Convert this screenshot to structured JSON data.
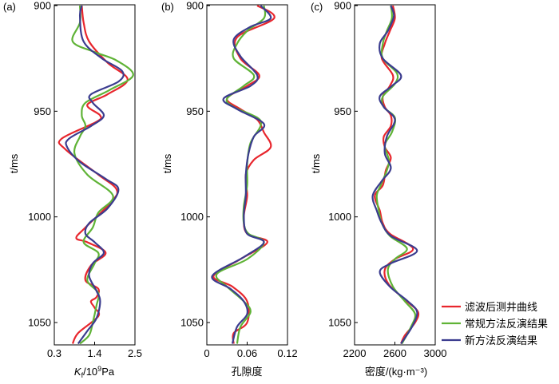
{
  "chart_data": [
    {
      "type": "line",
      "panel_label": "(a)",
      "ylabel": "t/ms",
      "xlabel_main": "K",
      "xlabel_sub": "f",
      "xlabel_rest": "/10",
      "xlabel_sup": "9",
      "xlabel_unit": "Pa",
      "xlim": [
        0.3,
        2.5
      ],
      "ylim": [
        900,
        1060
      ],
      "xticks": [
        "0.3",
        "1.4",
        "2.5"
      ],
      "xtick_values": [
        0.3,
        1.4,
        2.5
      ],
      "yticks": [
        "900",
        "950",
        "1000",
        "1050"
      ],
      "ytick_values": [
        900,
        950,
        1000,
        1050
      ],
      "series": [
        {
          "name": "滤波后测井曲线",
          "color": "#e8262d",
          "points": [
            [
              1.05,
              900
            ],
            [
              1.1,
              908
            ],
            [
              1.25,
              917
            ],
            [
              1.75,
              927
            ],
            [
              2.3,
              935
            ],
            [
              1.75,
              942
            ],
            [
              1.2,
              947
            ],
            [
              1.55,
              952
            ],
            [
              1.45,
              955
            ],
            [
              0.5,
              963
            ],
            [
              0.6,
              968
            ],
            [
              1.5,
              980
            ],
            [
              2.0,
              987
            ],
            [
              1.85,
              993
            ],
            [
              1.15,
              1005
            ],
            [
              0.9,
              1010
            ],
            [
              1.2,
              1012
            ],
            [
              1.7,
              1017
            ],
            [
              1.3,
              1023
            ],
            [
              1.15,
              1030
            ],
            [
              1.5,
              1034
            ],
            [
              1.45,
              1038
            ],
            [
              1.3,
              1040
            ],
            [
              1.4,
              1043
            ],
            [
              1.5,
              1047
            ],
            [
              0.95,
              1055
            ],
            [
              0.8,
              1060
            ]
          ]
        },
        {
          "name": "常规方法反演结果",
          "color": "#5fb336",
          "points": [
            [
              1.0,
              900
            ],
            [
              1.0,
              908
            ],
            [
              0.8,
              917
            ],
            [
              1.4,
              922
            ],
            [
              2.0,
              926
            ],
            [
              2.45,
              933
            ],
            [
              1.8,
              940
            ],
            [
              1.15,
              946
            ],
            [
              1.05,
              952
            ],
            [
              1.15,
              957
            ],
            [
              1.0,
              962
            ],
            [
              0.85,
              970
            ],
            [
              1.2,
              980
            ],
            [
              1.9,
              990
            ],
            [
              1.5,
              998
            ],
            [
              1.35,
              1005
            ],
            [
              1.1,
              1012
            ],
            [
              1.5,
              1017
            ],
            [
              1.4,
              1022
            ],
            [
              1.2,
              1030
            ],
            [
              1.5,
              1036
            ],
            [
              1.45,
              1042
            ],
            [
              1.35,
              1050
            ],
            [
              1.25,
              1056
            ],
            [
              1.0,
              1060
            ]
          ]
        },
        {
          "name": "新方法反演结果",
          "color": "#3b3c8f",
          "points": [
            [
              1.05,
              900
            ],
            [
              1.0,
              905
            ],
            [
              1.1,
              917
            ],
            [
              1.6,
              925
            ],
            [
              2.15,
              931
            ],
            [
              2.05,
              936
            ],
            [
              1.3,
              942
            ],
            [
              1.35,
              946
            ],
            [
              1.65,
              952
            ],
            [
              1.3,
              957
            ],
            [
              0.7,
              963
            ],
            [
              0.65,
              967
            ],
            [
              1.0,
              974
            ],
            [
              1.7,
              982
            ],
            [
              2.05,
              987
            ],
            [
              1.75,
              996
            ],
            [
              1.25,
              1003
            ],
            [
              1.15,
              1008
            ],
            [
              1.4,
              1012
            ],
            [
              1.65,
              1017
            ],
            [
              1.35,
              1022
            ],
            [
              1.25,
              1028
            ],
            [
              1.45,
              1035
            ],
            [
              1.55,
              1040
            ],
            [
              1.45,
              1048
            ],
            [
              1.2,
              1054
            ],
            [
              0.95,
              1060
            ]
          ]
        }
      ]
    },
    {
      "type": "line",
      "panel_label": "(b)",
      "ylabel": "t/ms",
      "xlabel_main": "孔隙度",
      "xlim": [
        0,
        0.12
      ],
      "ylim": [
        900,
        1060
      ],
      "xticks": [
        "0",
        "0.06",
        "0.12"
      ],
      "xtick_values": [
        0,
        0.06,
        0.12
      ],
      "yticks": [
        "900",
        "950",
        "1000",
        "1050"
      ],
      "ytick_values": [
        900,
        950,
        1000,
        1050
      ],
      "series": [
        {
          "name": "滤波后测井曲线",
          "color": "#e8262d",
          "points": [
            [
              0.075,
              900
            ],
            [
              0.1,
              906
            ],
            [
              0.045,
              915
            ],
            [
              0.05,
              925
            ],
            [
              0.078,
              933
            ],
            [
              0.06,
              938
            ],
            [
              0.03,
              944
            ],
            [
              0.05,
              949
            ],
            [
              0.075,
              954
            ],
            [
              0.085,
              960
            ],
            [
              0.095,
              967
            ],
            [
              0.07,
              973
            ],
            [
              0.058,
              980
            ],
            [
              0.06,
              990
            ],
            [
              0.055,
              1000
            ],
            [
              0.06,
              1008
            ],
            [
              0.09,
              1012
            ],
            [
              0.05,
              1020
            ],
            [
              0.01,
              1028
            ],
            [
              0.038,
              1033
            ],
            [
              0.06,
              1040
            ],
            [
              0.06,
              1050
            ],
            [
              0.04,
              1055
            ],
            [
              0.04,
              1060
            ]
          ]
        },
        {
          "name": "常规方法反演结果",
          "color": "#5fb336",
          "points": [
            [
              0.085,
              900
            ],
            [
              0.085,
              906
            ],
            [
              0.06,
              912
            ],
            [
              0.045,
              918
            ],
            [
              0.04,
              925
            ],
            [
              0.07,
              933
            ],
            [
              0.055,
              938
            ],
            [
              0.03,
              944
            ],
            [
              0.04,
              948
            ],
            [
              0.075,
              953
            ],
            [
              0.08,
              957
            ],
            [
              0.065,
              965
            ],
            [
              0.06,
              975
            ],
            [
              0.06,
              985
            ],
            [
              0.055,
              995
            ],
            [
              0.055,
              1003
            ],
            [
              0.062,
              1008
            ],
            [
              0.085,
              1012
            ],
            [
              0.06,
              1020
            ],
            [
              0.015,
              1027
            ],
            [
              0.03,
              1033
            ],
            [
              0.055,
              1040
            ],
            [
              0.065,
              1045
            ],
            [
              0.05,
              1052
            ],
            [
              0.045,
              1060
            ]
          ]
        },
        {
          "name": "新方法反演结果",
          "color": "#3b3c8f",
          "points": [
            [
              0.08,
              900
            ],
            [
              0.095,
              906
            ],
            [
              0.065,
              910
            ],
            [
              0.04,
              916
            ],
            [
              0.05,
              924
            ],
            [
              0.075,
              933
            ],
            [
              0.065,
              938
            ],
            [
              0.025,
              944
            ],
            [
              0.045,
              949
            ],
            [
              0.085,
              956
            ],
            [
              0.07,
              962
            ],
            [
              0.062,
              970
            ],
            [
              0.058,
              980
            ],
            [
              0.058,
              990
            ],
            [
              0.055,
              1000
            ],
            [
              0.06,
              1008
            ],
            [
              0.085,
              1012
            ],
            [
              0.055,
              1019
            ],
            [
              0.008,
              1028
            ],
            [
              0.035,
              1034
            ],
            [
              0.055,
              1040
            ],
            [
              0.06,
              1046
            ],
            [
              0.045,
              1052
            ],
            [
              0.038,
              1060
            ]
          ]
        }
      ]
    },
    {
      "type": "line",
      "panel_label": "(c)",
      "ylabel": "t/ms",
      "xlabel_main": "密度/(kg·m⁻³)",
      "xlim": [
        2200,
        3000
      ],
      "ylim": [
        900,
        1060
      ],
      "xticks": [
        "2200",
        "2600",
        "3000"
      ],
      "xtick_values": [
        2200,
        2600,
        3000
      ],
      "yticks": [
        "900",
        "950",
        "1000",
        "1050"
      ],
      "ytick_values": [
        900,
        950,
        1000,
        1050
      ],
      "series": [
        {
          "name": "滤波后测井曲线",
          "color": "#e8262d",
          "points": [
            [
              2580,
              900
            ],
            [
              2600,
              906
            ],
            [
              2550,
              912
            ],
            [
              2500,
              918
            ],
            [
              2470,
              925
            ],
            [
              2580,
              933
            ],
            [
              2550,
              938
            ],
            [
              2480,
              943
            ],
            [
              2500,
              948
            ],
            [
              2560,
              952
            ],
            [
              2560,
              957
            ],
            [
              2490,
              962
            ],
            [
              2500,
              967
            ],
            [
              2560,
              972
            ],
            [
              2510,
              978
            ],
            [
              2480,
              985
            ],
            [
              2400,
              990
            ],
            [
              2450,
              997
            ],
            [
              2480,
              1003
            ],
            [
              2550,
              1008
            ],
            [
              2780,
              1015
            ],
            [
              2600,
              1020
            ],
            [
              2500,
              1025
            ],
            [
              2540,
              1032
            ],
            [
              2720,
              1040
            ],
            [
              2830,
              1045
            ],
            [
              2800,
              1050
            ],
            [
              2700,
              1056
            ],
            [
              2660,
              1060
            ]
          ]
        },
        {
          "name": "常规方法反演结果",
          "color": "#5fb336",
          "points": [
            [
              2560,
              900
            ],
            [
              2570,
              906
            ],
            [
              2520,
              912
            ],
            [
              2480,
              918
            ],
            [
              2480,
              925
            ],
            [
              2620,
              932
            ],
            [
              2600,
              937
            ],
            [
              2480,
              943
            ],
            [
              2490,
              948
            ],
            [
              2600,
              953
            ],
            [
              2570,
              960
            ],
            [
              2500,
              966
            ],
            [
              2540,
              973
            ],
            [
              2520,
              978
            ],
            [
              2460,
              985
            ],
            [
              2420,
              990
            ],
            [
              2440,
              997
            ],
            [
              2470,
              1003
            ],
            [
              2550,
              1009
            ],
            [
              2720,
              1015
            ],
            [
              2600,
              1020
            ],
            [
              2530,
              1025
            ],
            [
              2580,
              1033
            ],
            [
              2700,
              1040
            ],
            [
              2800,
              1046
            ],
            [
              2760,
              1052
            ],
            [
              2670,
              1060
            ]
          ]
        },
        {
          "name": "新方法反演结果",
          "color": "#3b3c8f",
          "points": [
            [
              2560,
              900
            ],
            [
              2590,
              905
            ],
            [
              2530,
              912
            ],
            [
              2450,
              918
            ],
            [
              2480,
              925
            ],
            [
              2660,
              933
            ],
            [
              2570,
              938
            ],
            [
              2450,
              943
            ],
            [
              2490,
              948
            ],
            [
              2600,
              954
            ],
            [
              2520,
              962
            ],
            [
              2500,
              970
            ],
            [
              2560,
              977
            ],
            [
              2470,
              983
            ],
            [
              2380,
              990
            ],
            [
              2420,
              997
            ],
            [
              2470,
              1003
            ],
            [
              2560,
              1009
            ],
            [
              2820,
              1016
            ],
            [
              2560,
              1022
            ],
            [
              2450,
              1026
            ],
            [
              2550,
              1033
            ],
            [
              2730,
              1040
            ],
            [
              2820,
              1045
            ],
            [
              2770,
              1052
            ],
            [
              2660,
              1060
            ]
          ]
        }
      ]
    }
  ]
}
